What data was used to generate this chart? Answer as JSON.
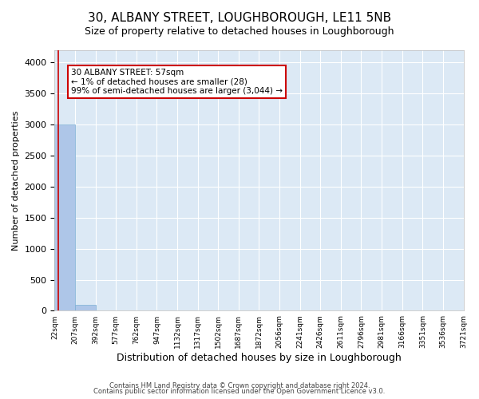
{
  "title_line1": "30, ALBANY STREET, LOUGHBOROUGH, LE11 5NB",
  "title_line2": "Size of property relative to detached houses in Loughborough",
  "xlabel": "Distribution of detached houses by size in Loughborough",
  "ylabel": "Number of detached properties",
  "bar_values": [
    3000,
    100,
    0,
    0,
    0,
    0,
    0,
    0,
    0,
    0,
    0,
    0,
    0,
    0,
    0,
    0,
    0,
    0,
    0,
    0
  ],
  "bar_color": "#aec6e8",
  "bar_edge_color": "#7bafd4",
  "x_labels": [
    "22sqm",
    "207sqm",
    "392sqm",
    "577sqm",
    "762sqm",
    "947sqm",
    "1132sqm",
    "1317sqm",
    "1502sqm",
    "1687sqm",
    "1872sqm",
    "2056sqm",
    "2241sqm",
    "2426sqm",
    "2611sqm",
    "2796sqm",
    "2981sqm",
    "3166sqm",
    "3351sqm",
    "3536sqm",
    "3721sqm"
  ],
  "ylim": [
    0,
    4200
  ],
  "yticks": [
    0,
    500,
    1000,
    1500,
    2000,
    2500,
    3000,
    3500,
    4000
  ],
  "annotation_text": "30 ALBANY STREET: 57sqm\n← 1% of detached houses are smaller (28)\n99% of semi-detached houses are larger (3,044) →",
  "annotation_box_color": "#ffffff",
  "annotation_box_edge_color": "#cc0000",
  "property_line_color": "#cc0000",
  "background_color": "#dce9f5",
  "grid_color": "#ffffff",
  "title_fontsize": 11,
  "subtitle_fontsize": 9,
  "footer_line1": "Contains HM Land Registry data © Crown copyright and database right 2024.",
  "footer_line2": "Contains public sector information licensed under the Open Government Licence v3.0."
}
